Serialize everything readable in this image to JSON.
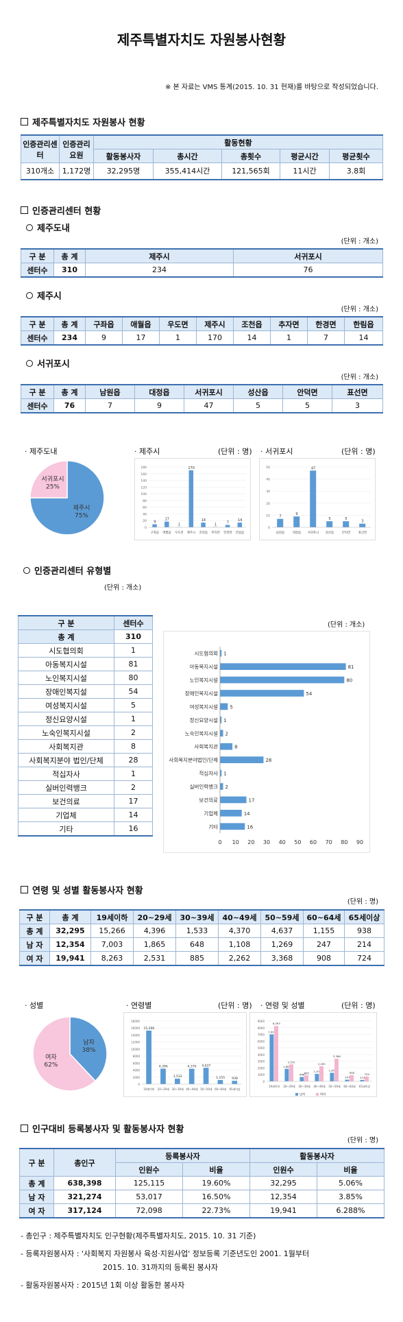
{
  "title": "제주특별자치도 자원봉사현황",
  "note": "※ 본 자료는 VMS 통계(2015. 10. 31 현재)를 바탕으로 작성되었습니다.",
  "s1": {
    "title": "제주특별자치도 자원봉사 현황",
    "h_center": "인증관리센터",
    "h_staff": "인증관리요원",
    "h_activity": "활동현황",
    "cols": [
      "활동봉사자",
      "총시간",
      "총횟수",
      "평균시간",
      "평균횟수"
    ],
    "row": [
      "310개소",
      "1,172명",
      "32,295명",
      "355,414시간",
      "121,565회",
      "11시간",
      "3.8회"
    ]
  },
  "s2": {
    "title": "인증관리센터 현황",
    "unit": "(단위 : 개소)",
    "jeju_do": {
      "title": "제주도내",
      "head": [
        "구 분",
        "총 계",
        "제주시",
        "서귀포시"
      ],
      "row": [
        "센터수",
        "310",
        "234",
        "76"
      ]
    },
    "jeju_si": {
      "title": "제주시",
      "head": [
        "구 분",
        "총 계",
        "구좌읍",
        "애월읍",
        "우도면",
        "제주시",
        "조천읍",
        "추자면",
        "한경면",
        "한림읍"
      ],
      "row": [
        "센터수",
        "234",
        "9",
        "17",
        "1",
        "170",
        "14",
        "1",
        "7",
        "14"
      ]
    },
    "seogwipo": {
      "title": "서귀포시",
      "head": [
        "구 분",
        "총 계",
        "남원읍",
        "대정읍",
        "서귀포시",
        "성산읍",
        "안덕면",
        "표선면"
      ],
      "row": [
        "센터수",
        "76",
        "7",
        "9",
        "47",
        "5",
        "5",
        "3"
      ]
    }
  },
  "charts1": {
    "pie_title": "· 제주도내",
    "bar1_title": "· 제주시",
    "bar2_title": "· 서귀포시",
    "unit_person": "(단위 : 명)"
  },
  "s3": {
    "title": "인증관리센터 유형별",
    "unit": "(단위 : 개소)",
    "unit2": "(단위 : 개소)",
    "head": [
      "구 분",
      "센터수"
    ],
    "total": [
      "총 계",
      "310"
    ],
    "rows": [
      [
        "시도협의회",
        "1"
      ],
      [
        "아동복지시설",
        "81"
      ],
      [
        "노인복지시설",
        "80"
      ],
      [
        "장애인복지설",
        "54"
      ],
      [
        "여성복지시설",
        "5"
      ],
      [
        "정신요양시설",
        "1"
      ],
      [
        "노숙인복지시설",
        "2"
      ],
      [
        "사회복지관",
        "8"
      ],
      [
        "사회복지분야 법인/단체",
        "28"
      ],
      [
        "적십자사",
        "1"
      ],
      [
        "실버인력뱅크",
        "2"
      ],
      [
        "보건의료",
        "17"
      ],
      [
        "기업체",
        "14"
      ],
      [
        "기타",
        "16"
      ]
    ]
  },
  "s4": {
    "title": "연령 및 성별 활동봉사자 현황",
    "unit": "(단위 : 명)",
    "head": [
      "구 분",
      "총 계",
      "19세이하",
      "20~29세",
      "30~39세",
      "40~49세",
      "50~59세",
      "60~64세",
      "65세이상"
    ],
    "rows": [
      [
        "총 계",
        "32,295",
        "15,266",
        "4,396",
        "1,533",
        "4,370",
        "4,637",
        "1,155",
        "938"
      ],
      [
        "남 자",
        "12,354",
        "7,003",
        "1,865",
        "648",
        "1,108",
        "1,269",
        "247",
        "214"
      ],
      [
        "여 자",
        "19,941",
        "8,263",
        "2,531",
        "885",
        "2,262",
        "3,368",
        "908",
        "724"
      ]
    ]
  },
  "charts2": {
    "pie_title": "· 성별",
    "bar1_title": "· 연령별",
    "bar2_title": "· 연령 및 성별",
    "unit_person": "(단위 : 명)"
  },
  "s5": {
    "title": "인구대비 등록봉사자 및 활동봉사자 현황",
    "unit": "(단위 : 명)",
    "h_gubun": "구 분",
    "h_pop": "총인구",
    "h_reg": "등록봉사자",
    "h_act": "활동봉사자",
    "h_cnt": "인원수",
    "h_ratio": "비율",
    "rows": [
      [
        "총 계",
        "638,398",
        "125,115",
        "19.60%",
        "32,295",
        "5.06%"
      ],
      [
        "남 자",
        "321,274",
        "53,017",
        "16.50%",
        "12,354",
        "3.85%"
      ],
      [
        "여 자",
        "317,124",
        "72,098",
        "22.73%",
        "19,941",
        "6.288%"
      ]
    ],
    "notes": [
      "- 총인구 : 제주특별자치도 인구현황(제주특별자치도, 2015. 10. 31 기준)",
      "- 등록자원봉사자 : '사회복지 자원봉사 육성·지원사업' 정보등록 기준년도인 2001. 1월부터",
      "2015. 10. 31까지의 등록된 봉사자",
      "- 활동자원봉사자 : 2015년 1회 이상 활동한 봉사자"
    ]
  },
  "chart_data": [
    {
      "type": "pie",
      "labels": [
        "제주시",
        "서귀포시"
      ],
      "values": [
        75,
        25
      ],
      "texts": [
        "제주시\n75%",
        "서귀포시\n25%"
      ],
      "colors": [
        "#5b9bd5",
        "#f8c6dd"
      ]
    },
    {
      "type": "bar",
      "categories": [
        "구좌읍",
        "애월읍",
        "우도면",
        "제주시",
        "조천읍",
        "추자면",
        "한경면",
        "한림읍"
      ],
      "values": [
        9,
        17,
        1,
        170,
        14,
        1,
        7,
        14
      ],
      "ylim": [
        0,
        180
      ],
      "ticks": [
        0,
        20,
        40,
        60,
        80,
        100,
        120,
        140,
        160,
        180
      ]
    },
    {
      "type": "bar",
      "categories": [
        "남원읍",
        "대정읍",
        "서귀포시",
        "성산읍",
        "안덕면",
        "표선면"
      ],
      "values": [
        7,
        9,
        47,
        5,
        5,
        3
      ],
      "ylim": [
        0,
        50
      ],
      "ticks": [
        0,
        10,
        20,
        30,
        40,
        50
      ]
    },
    {
      "type": "bar",
      "orientation": "horizontal",
      "categories": [
        "시도협의회",
        "아동복지시설",
        "노인복지시설",
        "장애인복지시설",
        "여성복지시설",
        "정신요양시설",
        "노숙인복지시설",
        "사회복지관",
        "사회복지분야법인/단체",
        "적십자사",
        "실버인력뱅크",
        "보건의료",
        "기업체",
        "기타"
      ],
      "values": [
        1,
        81,
        80,
        54,
        5,
        1,
        2,
        8,
        28,
        1,
        2,
        17,
        14,
        16
      ],
      "xlim": [
        0,
        90
      ],
      "ticks": [
        0,
        10,
        20,
        30,
        40,
        50,
        60,
        70,
        80,
        90
      ]
    },
    {
      "type": "pie",
      "labels": [
        "남자",
        "여자"
      ],
      "values": [
        38,
        62
      ],
      "texts": [
        "남자\n38%",
        "여자\n62%"
      ],
      "colors": [
        "#5b9bd5",
        "#f8c6dd"
      ]
    },
    {
      "type": "bar",
      "categories": [
        "19세이하",
        "20~29세",
        "30~39세",
        "40~49세",
        "50~59세",
        "60~64세",
        "65세이상"
      ],
      "values": [
        15266,
        4396,
        1533,
        4370,
        4637,
        1155,
        938
      ],
      "ylim": [
        0,
        18000
      ],
      "ticks": [
        0,
        2000,
        4000,
        6000,
        8000,
        10000,
        12000,
        14000,
        16000,
        18000
      ]
    },
    {
      "type": "bar",
      "categories": [
        "19세이하",
        "20~29세",
        "30~39세",
        "40~49세",
        "50~59세",
        "60~64세",
        "65세이상"
      ],
      "series": [
        {
          "name": "남자",
          "values": [
            7003,
            1865,
            648,
            1108,
            1269,
            247,
            214
          ],
          "color": "#5b9bd5"
        },
        {
          "name": "여자",
          "values": [
            8263,
            2531,
            885,
            2262,
            3368,
            908,
            724
          ],
          "color": "#f4b6cf"
        }
      ],
      "ylim": [
        0,
        9000
      ],
      "ticks": [
        0,
        1000,
        2000,
        3000,
        4000,
        5000,
        6000,
        7000,
        8000,
        9000
      ]
    }
  ]
}
